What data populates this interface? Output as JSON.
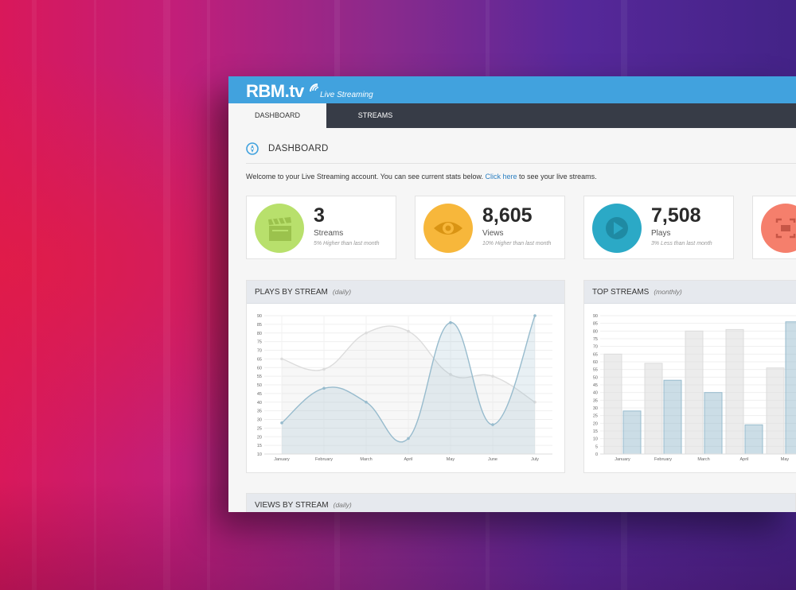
{
  "header": {
    "logo": "RBM.tv",
    "tagline": "Live Streaming"
  },
  "nav": {
    "tabs": [
      {
        "label": "DASHBOARD",
        "active": true
      },
      {
        "label": "STREAMS",
        "active": false
      }
    ]
  },
  "page": {
    "title": "DASHBOARD",
    "welcome_prefix": "Welcome to your Live Streaming account. You can see current stats below.",
    "welcome_link": "Click here",
    "welcome_suffix": "to see your live streams."
  },
  "stats": [
    {
      "value": "3",
      "label": "Streams",
      "note": "5% Higher than last month",
      "color": "#b8e06c",
      "icon": "film-clapper-icon"
    },
    {
      "value": "8,605",
      "label": "Views",
      "note": "10% Higher than last month",
      "color": "#f7b73b",
      "icon": "eye-icon"
    },
    {
      "value": "7,508",
      "label": "Plays",
      "note": "3% Less than last month",
      "color": "#2ba9c6",
      "icon": "play-icon"
    },
    {
      "color": "#f57f6c",
      "icon": "screen-capture-icon"
    }
  ],
  "panels": {
    "plays_title": "PLAYS BY STREAM",
    "plays_period": "(daily)",
    "top_title": "TOP STREAMS",
    "top_period": "(monthly)",
    "views_title": "VIEWS BY STREAM",
    "views_period": "(daily)"
  },
  "chart_data": [
    {
      "type": "line",
      "x": [
        "January",
        "February",
        "March",
        "April",
        "May",
        "June",
        "July"
      ],
      "series": [
        {
          "values": [
            65,
            59,
            80,
            81,
            56,
            55,
            40
          ],
          "color": "#dcdcdc"
        },
        {
          "values": [
            28,
            48,
            40,
            19,
            86,
            27,
            90
          ],
          "color": "#97bbcd"
        }
      ],
      "y_ticks": [
        10,
        15,
        20,
        25,
        30,
        35,
        40,
        45,
        50,
        55,
        60,
        65,
        70,
        75,
        80,
        85,
        90
      ],
      "ylim": [
        10,
        90
      ],
      "grid": true
    },
    {
      "type": "bar",
      "categories": [
        "January",
        "February",
        "March",
        "April",
        "May"
      ],
      "series": [
        {
          "values": [
            65,
            59,
            80,
            81,
            56
          ],
          "color": "#dcdcdc"
        },
        {
          "values": [
            28,
            48,
            40,
            19,
            86
          ],
          "color": "#97bbcd"
        }
      ],
      "y_ticks": [
        0,
        5,
        10,
        15,
        20,
        25,
        30,
        35,
        40,
        45,
        50,
        55,
        60,
        65,
        70,
        75,
        80,
        85,
        90
      ],
      "ylim": [
        0,
        90
      ],
      "grid": true
    }
  ]
}
